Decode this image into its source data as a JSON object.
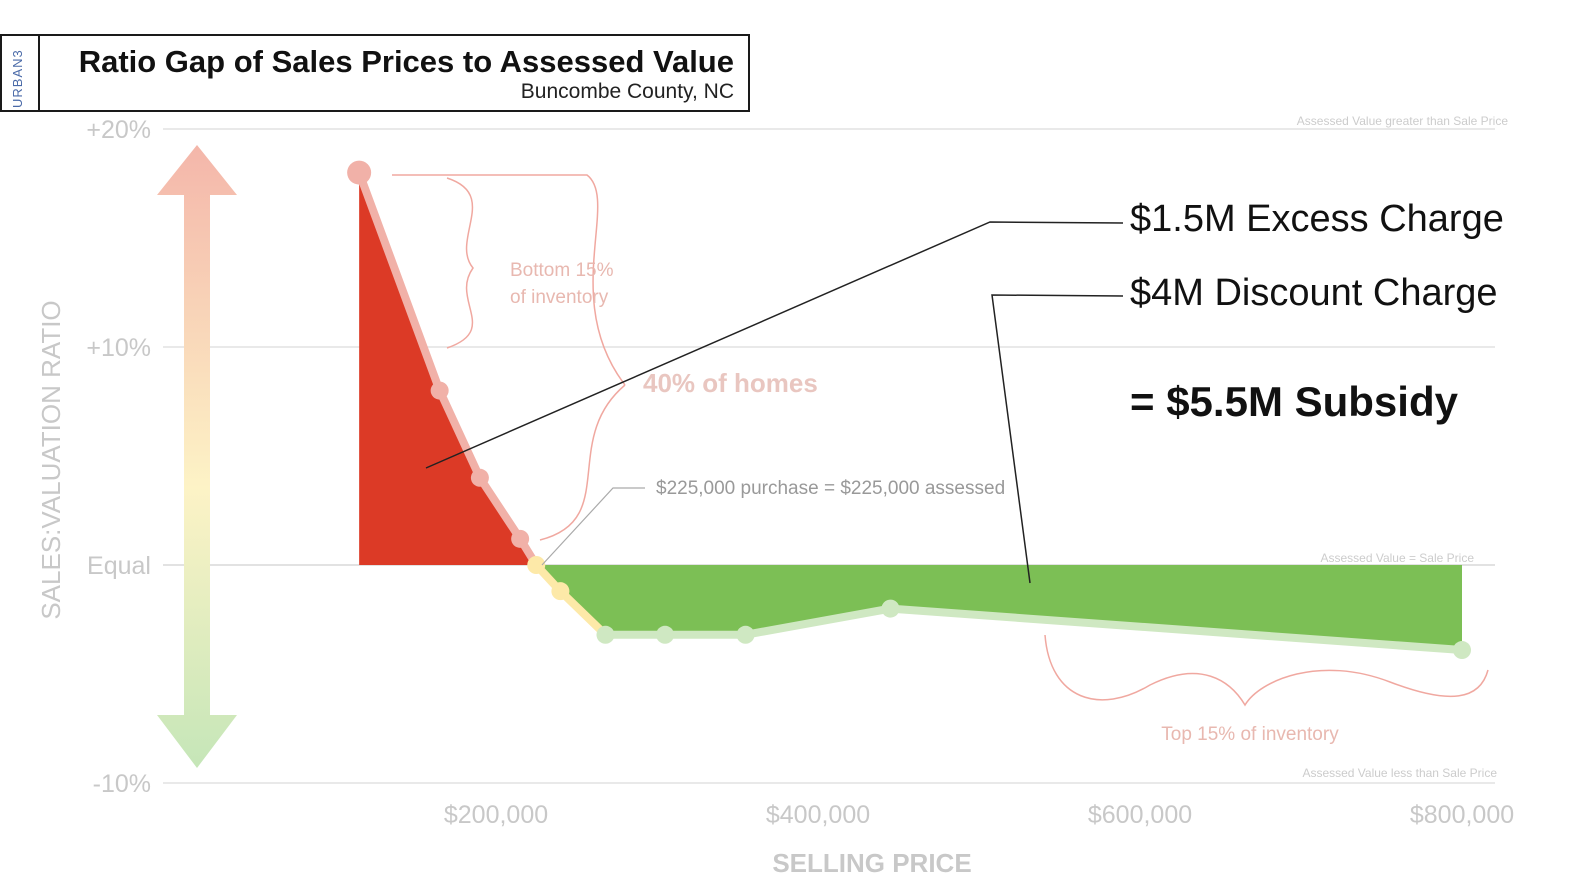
{
  "header": {
    "brand": "URBAN3",
    "title": "Ratio Gap of Sales Prices to Assessed Value",
    "subtitle": "Buncombe County, NC"
  },
  "callouts": {
    "excess": "$1.5M Excess Charge",
    "discount": "$4M Discount Charge",
    "subsidy": "= $5.5M Subsidy"
  },
  "colors": {
    "excess_fill": "#dc3a26",
    "discount_fill": "#7cbf55",
    "axis_text": "#c8c8c8",
    "annotation": "#f0a8a0"
  },
  "chart_data": {
    "type": "area",
    "title": "Ratio Gap of Sales Prices to Assessed Value",
    "subtitle": "Buncombe County, NC",
    "xlabel": "SELLING PRICE",
    "ylabel": "SALES:VALUATION RATIO",
    "xlim": [
      10000,
      800000
    ],
    "ylim": [
      -10,
      20
    ],
    "x_ticks": [
      {
        "value": 200000,
        "label": "$200,000"
      },
      {
        "value": 400000,
        "label": "$400,000"
      },
      {
        "value": 600000,
        "label": "$600,000"
      },
      {
        "value": 800000,
        "label": "$800,000"
      }
    ],
    "y_ticks": [
      {
        "value": 20,
        "label": "+20%"
      },
      {
        "value": 10,
        "label": "+10%"
      },
      {
        "value": 0,
        "label": "Equal"
      },
      {
        "value": -10,
        "label": "-10%"
      }
    ],
    "series": [
      {
        "name": "Ratio gap",
        "x": [
          115000,
          165000,
          190000,
          215000,
          225000,
          240000,
          268000,
          305000,
          355000,
          445000,
          800000
        ],
        "y": [
          18,
          8,
          4,
          1.2,
          0,
          -1.2,
          -3.2,
          -3.2,
          -3.2,
          -2,
          -3.9
        ]
      }
    ],
    "excess_region": {
      "label": "$1.5M Excess Charge"
    },
    "discount_region": {
      "label": "$4M Discount Charge"
    },
    "annotations": {
      "bottom_inventory": "Bottom 15% of inventory",
      "forty_percent": "40% of homes",
      "break_even": "$225,000 purchase = $225,000 assessed",
      "top_inventory": "Top 15% of inventory",
      "zone_above": "Assessed Value greater than Sale Price",
      "zone_equal": "Assessed Value = Sale Price",
      "zone_below": "Assessed Value less than Sale Price"
    }
  }
}
